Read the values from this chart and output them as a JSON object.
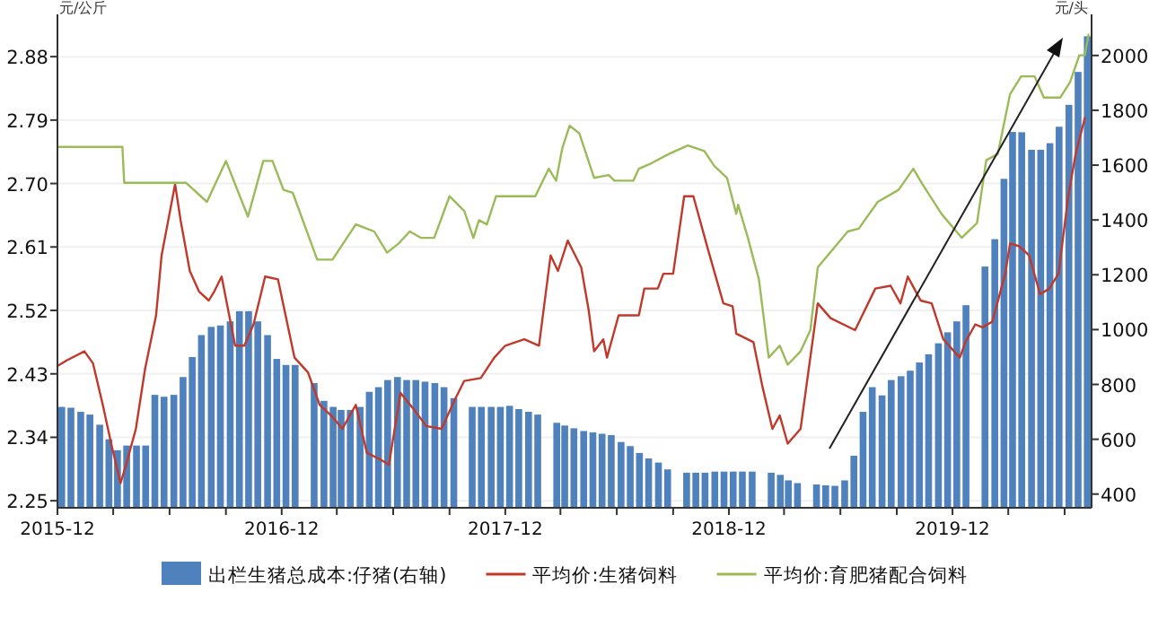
{
  "chart_data": {
    "type": "bar",
    "ylabel": "元/公斤",
    "y2label": "元/头",
    "legend": "bottom",
    "grid": "y",
    "xlim": [
      "2015-12-01",
      "2020-07-15"
    ],
    "xticks": [
      {
        "value": "2015-12-01",
        "label": "2015-12"
      },
      {
        "value": "2016-03-01",
        "label": null
      },
      {
        "value": "2016-06-01",
        "label": null
      },
      {
        "value": "2016-09-01",
        "label": null
      },
      {
        "value": "2016-12-01",
        "label": "2016-12"
      },
      {
        "value": "2017-03-01",
        "label": null
      },
      {
        "value": "2017-06-01",
        "label": null
      },
      {
        "value": "2017-09-01",
        "label": null
      },
      {
        "value": "2017-12-01",
        "label": "2017-12"
      },
      {
        "value": "2018-03-01",
        "label": null
      },
      {
        "value": "2018-06-01",
        "label": null
      },
      {
        "value": "2018-09-01",
        "label": null
      },
      {
        "value": "2018-12-01",
        "label": "2018-12"
      },
      {
        "value": "2019-03-01",
        "label": null
      },
      {
        "value": "2019-06-01",
        "label": null
      },
      {
        "value": "2019-09-01",
        "label": null
      },
      {
        "value": "2019-12-01",
        "label": "2019-12"
      },
      {
        "value": "2020-03-01",
        "label": null
      },
      {
        "value": "2020-06-01",
        "label": null
      }
    ],
    "ylim": [
      2.24,
      2.94
    ],
    "yticks": [
      {
        "value": 2.25,
        "label": "2.25"
      },
      {
        "value": 2.34,
        "label": "2.34"
      },
      {
        "value": 2.43,
        "label": "2.43"
      },
      {
        "value": 2.52,
        "label": "2.52"
      },
      {
        "value": 2.61,
        "label": "2.61"
      },
      {
        "value": 2.7,
        "label": "2.70"
      },
      {
        "value": 2.79,
        "label": "2.79"
      },
      {
        "value": 2.88,
        "label": "2.88"
      }
    ],
    "y2lim": [
      350,
      2150
    ],
    "y2ticks": [
      400,
      600,
      800,
      1000,
      1200,
      1400,
      1600,
      1800,
      2000
    ],
    "series": [
      {
        "name": "出栏生猪总成本:仔猪(右轴)",
        "axis": "y2",
        "color": "#4f81bd",
        "x": [
          "2015-12-08",
          "2015-12-23",
          "2016-01-08",
          "2016-01-23",
          "2016-02-08",
          "2016-02-23",
          "2016-03-08",
          "2016-03-23",
          "2016-04-08",
          "2016-04-23",
          "2016-05-08",
          "2016-05-23",
          "2016-06-08",
          "2016-06-23",
          "2016-07-08",
          "2016-07-23",
          "2016-08-08",
          "2016-08-23",
          "2016-09-08",
          "2016-09-23",
          "2016-10-08",
          "2016-10-23",
          "2016-11-08",
          "2016-11-23",
          "2016-12-08",
          "2016-12-23",
          "2017-01-08",
          "2017-01-23",
          "2017-02-08",
          "2017-02-23",
          "2017-03-08",
          "2017-03-23",
          "2017-04-08",
          "2017-04-23",
          "2017-05-08",
          "2017-05-23",
          "2017-06-08",
          "2017-06-23",
          "2017-07-08",
          "2017-07-23",
          "2017-08-08",
          "2017-08-23",
          "2017-09-08",
          "2017-09-23",
          "2017-10-08",
          "2017-10-23",
          "2017-11-08",
          "2017-11-23",
          "2017-12-08",
          "2017-12-23",
          "2018-01-08",
          "2018-01-23",
          "2018-02-08",
          "2018-02-23",
          "2018-03-08",
          "2018-03-23",
          "2018-04-08",
          "2018-04-23",
          "2018-05-08",
          "2018-05-23",
          "2018-06-08",
          "2018-06-23",
          "2018-07-08",
          "2018-07-23",
          "2018-08-08",
          "2018-08-23",
          "2018-09-08",
          "2018-09-23",
          "2018-10-08",
          "2018-10-23",
          "2018-11-08",
          "2018-11-23",
          "2018-12-08",
          "2018-12-23",
          "2019-01-08",
          "2019-01-23",
          "2019-02-08",
          "2019-02-23",
          "2019-03-08",
          "2019-03-23",
          "2019-04-08",
          "2019-04-23",
          "2019-05-08",
          "2019-05-23",
          "2019-06-08",
          "2019-06-23",
          "2019-07-08",
          "2019-07-23",
          "2019-08-08",
          "2019-08-23",
          "2019-09-08",
          "2019-09-23",
          "2019-10-08",
          "2019-10-23",
          "2019-11-08",
          "2019-11-23",
          "2019-12-08",
          "2019-12-23",
          "2020-01-08",
          "2020-01-23",
          "2020-02-08",
          "2020-02-23",
          "2020-03-08",
          "2020-03-23",
          "2020-04-08",
          "2020-04-23",
          "2020-05-08",
          "2020-05-23",
          "2020-06-08",
          "2020-06-23",
          "2020-07-08"
        ],
        "values": [
          718,
          715,
          700,
          690,
          653,
          600,
          560,
          577,
          577,
          577,
          762,
          755,
          762,
          827,
          900,
          980,
          1010,
          1015,
          1030,
          1067,
          1067,
          1030,
          980,
          893,
          871,
          871,
          null,
          805,
          740,
          718,
          707,
          707,
          718,
          773,
          790,
          816,
          827,
          816,
          816,
          810,
          805,
          790,
          750,
          null,
          718,
          718,
          718,
          718,
          722,
          710,
          700,
          690,
          null,
          660,
          650,
          640,
          630,
          625,
          620,
          615,
          590,
          575,
          550,
          530,
          515,
          490,
          null,
          478,
          478,
          478,
          482,
          482,
          482,
          482,
          482,
          null,
          478,
          470,
          450,
          440,
          null,
          435,
          432,
          430,
          450,
          540,
          700,
          790,
          760,
          816,
          830,
          850,
          880,
          910,
          950,
          990,
          1030,
          1089,
          null,
          1230,
          1330,
          1550,
          1721,
          1720,
          1656,
          1656,
          1680,
          1740,
          1820,
          1940,
          2070
        ]
      },
      {
        "name": "平均价:生猪饲料",
        "type": "line",
        "axis": "y",
        "color": "#c0392b",
        "x": [
          "2015-12-01",
          "2015-12-16",
          "2016-01-14",
          "2016-01-28",
          "2016-02-13",
          "2016-02-28",
          "2016-03-13",
          "2016-03-22",
          "2016-04-07",
          "2016-04-22",
          "2016-05-10",
          "2016-05-19",
          "2016-06-10",
          "2016-06-19",
          "2016-07-04",
          "2016-07-19",
          "2016-08-04",
          "2016-08-13",
          "2016-08-25",
          "2016-09-16",
          "2016-10-01",
          "2016-10-16",
          "2016-11-04",
          "2016-11-25",
          "2016-12-22",
          "2017-01-13",
          "2017-02-01",
          "2017-02-22",
          "2017-03-10",
          "2017-04-01",
          "2017-04-19",
          "2017-05-10",
          "2017-05-25",
          "2017-06-13",
          "2017-07-07",
          "2017-07-25",
          "2017-08-19",
          "2017-09-10",
          "2017-09-25",
          "2017-10-22",
          "2017-11-13",
          "2017-12-01",
          "2018-01-01",
          "2018-01-25",
          "2018-02-13",
          "2018-02-25",
          "2018-03-13",
          "2018-04-04",
          "2018-04-16",
          "2018-04-25",
          "2018-05-10",
          "2018-05-16",
          "2018-06-04",
          "2018-07-07",
          "2018-07-16",
          "2018-08-07",
          "2018-08-16",
          "2018-09-01",
          "2018-09-19",
          "2018-10-04",
          "2018-10-28",
          "2018-11-22",
          "2018-12-07",
          "2018-12-13",
          "2019-01-10",
          "2019-01-25",
          "2019-02-10",
          "2019-02-22",
          "2019-03-07",
          "2019-03-28",
          "2019-04-25",
          "2019-05-16",
          "2019-06-25",
          "2019-07-28",
          "2019-08-22",
          "2019-09-07",
          "2019-09-19",
          "2019-10-10",
          "2019-10-28",
          "2019-11-16",
          "2019-12-13",
          "2019-12-22",
          "2020-01-07",
          "2020-01-19",
          "2020-02-04",
          "2020-02-25",
          "2020-03-04",
          "2020-03-19",
          "2020-04-04",
          "2020-04-22",
          "2020-05-07",
          "2020-05-22",
          "2020-06-07",
          "2020-06-19",
          "2020-07-04"
        ],
        "values": [
          2.441,
          2.449,
          2.462,
          2.445,
          2.386,
          2.326,
          2.275,
          2.301,
          2.352,
          2.437,
          2.513,
          2.598,
          2.699,
          2.648,
          2.576,
          2.547,
          2.534,
          2.547,
          2.568,
          2.47,
          2.47,
          2.5,
          2.568,
          2.564,
          2.453,
          2.432,
          2.386,
          2.369,
          2.352,
          2.386,
          2.318,
          2.309,
          2.301,
          2.403,
          2.377,
          2.356,
          2.352,
          2.394,
          2.42,
          2.424,
          2.453,
          2.47,
          2.479,
          2.47,
          2.598,
          2.576,
          2.619,
          2.581,
          2.521,
          2.462,
          2.479,
          2.453,
          2.513,
          2.513,
          2.551,
          2.551,
          2.572,
          2.572,
          2.682,
          2.682,
          2.606,
          2.53,
          2.526,
          2.487,
          2.475,
          2.411,
          2.352,
          2.371,
          2.331,
          2.352,
          2.53,
          2.509,
          2.492,
          2.551,
          2.555,
          2.53,
          2.568,
          2.534,
          2.53,
          2.479,
          2.453,
          2.475,
          2.5,
          2.496,
          2.504,
          2.572,
          2.615,
          2.611,
          2.598,
          2.543,
          2.551,
          2.572,
          2.682,
          2.742,
          2.793
        ]
      },
      {
        "name": "平均价:育肥猪配合饲料",
        "type": "line",
        "axis": "y",
        "color": "#9bbb59",
        "x": [
          "2015-12-01",
          "2016-03-16",
          "2016-03-19",
          "2016-06-28",
          "2016-08-01",
          "2016-09-01",
          "2016-10-07",
          "2016-11-01",
          "2016-11-16",
          "2016-12-04",
          "2016-12-19",
          "2017-01-28",
          "2017-02-22",
          "2017-04-01",
          "2017-05-01",
          "2017-05-22",
          "2017-06-10",
          "2017-06-28",
          "2017-07-16",
          "2017-08-07",
          "2017-09-01",
          "2017-09-25",
          "2017-10-10",
          "2017-10-19",
          "2017-11-01",
          "2017-11-16",
          "2018-01-19",
          "2018-02-10",
          "2018-02-22",
          "2018-03-04",
          "2018-03-16",
          "2018-04-01",
          "2018-04-25",
          "2018-05-19",
          "2018-05-28",
          "2018-06-28",
          "2018-07-07",
          "2018-07-28",
          "2018-08-25",
          "2018-09-25",
          "2018-10-22",
          "2018-11-07",
          "2018-11-28",
          "2018-12-13",
          "2018-12-16",
          "2019-01-01",
          "2019-01-19",
          "2019-02-04",
          "2019-02-22",
          "2019-03-07",
          "2019-03-28",
          "2019-04-13",
          "2019-04-25",
          "2019-05-19",
          "2019-06-13",
          "2019-07-01",
          "2019-08-01",
          "2019-09-04",
          "2019-09-28",
          "2019-10-13",
          "2019-11-13",
          "2019-12-16",
          "2020-01-10",
          "2020-01-25",
          "2020-02-13",
          "2020-03-04",
          "2020-03-22",
          "2020-04-13",
          "2020-04-28",
          "2020-05-25",
          "2020-06-10",
          "2020-06-25",
          "2020-07-04",
          "2020-07-10"
        ],
        "values": [
          2.752,
          2.752,
          2.701,
          2.701,
          2.674,
          2.732,
          2.653,
          2.732,
          2.732,
          2.691,
          2.687,
          2.592,
          2.592,
          2.642,
          2.632,
          2.602,
          2.615,
          2.632,
          2.623,
          2.623,
          2.682,
          2.661,
          2.623,
          2.648,
          2.642,
          2.682,
          2.682,
          2.721,
          2.704,
          2.75,
          2.782,
          2.771,
          2.708,
          2.712,
          2.704,
          2.704,
          2.721,
          2.729,
          2.742,
          2.754,
          2.746,
          2.725,
          2.708,
          2.657,
          2.67,
          2.623,
          2.564,
          2.453,
          2.47,
          2.443,
          2.462,
          2.492,
          2.581,
          2.606,
          2.632,
          2.636,
          2.674,
          2.691,
          2.721,
          2.699,
          2.657,
          2.623,
          2.644,
          2.733,
          2.742,
          2.827,
          2.852,
          2.852,
          2.822,
          2.822,
          2.844,
          2.882,
          2.882,
          2.911
        ]
      }
    ]
  }
}
